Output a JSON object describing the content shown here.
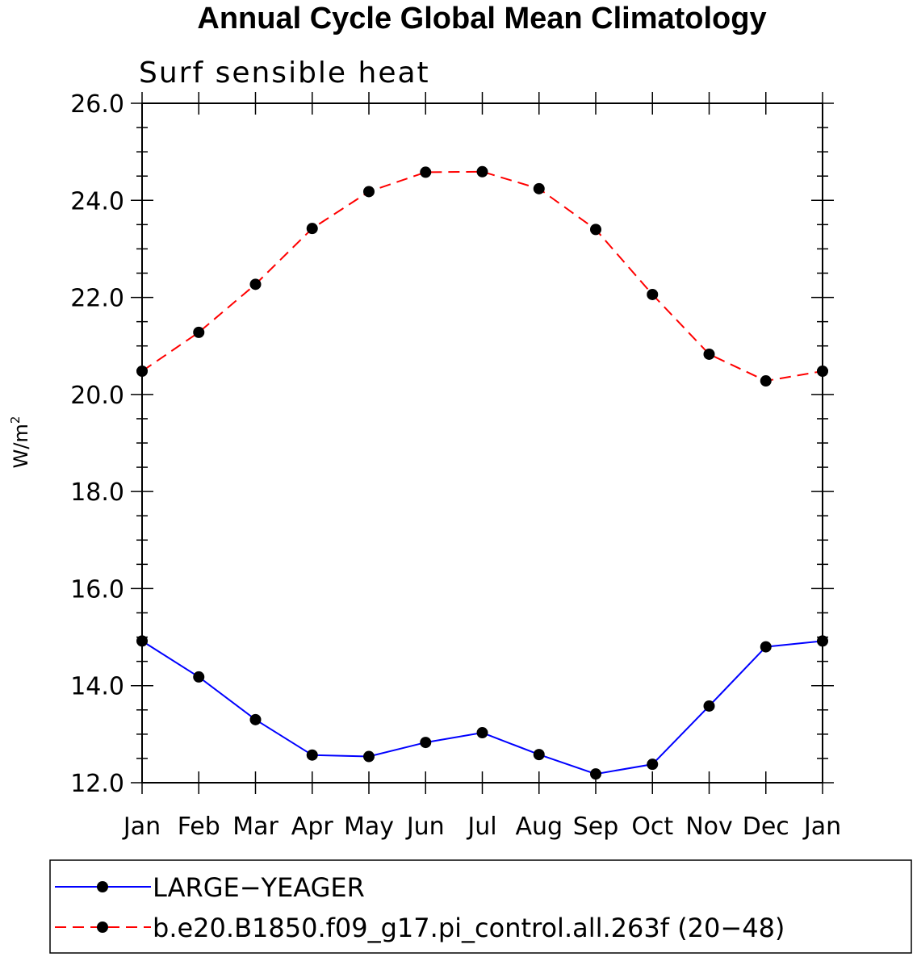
{
  "chart_data": {
    "type": "line",
    "title": "Annual Cycle Global Mean Climatology",
    "subtitle": "Surf sensible heat",
    "ylabel": "W/m",
    "ylabel_superscript": "2",
    "ylim": [
      12.0,
      26.0
    ],
    "yticks": [
      "12.0",
      "14.0",
      "16.0",
      "18.0",
      "20.0",
      "22.0",
      "24.0",
      "26.0"
    ],
    "categories": [
      "Jan",
      "Feb",
      "Mar",
      "Apr",
      "May",
      "Jun",
      "Jul",
      "Aug",
      "Sep",
      "Oct",
      "Nov",
      "Dec",
      "Jan"
    ],
    "series": [
      {
        "name": "LARGE−YEAGER",
        "color": "#0000ff",
        "line": "solid",
        "values": [
          14.92,
          14.18,
          13.3,
          12.57,
          12.54,
          12.83,
          13.03,
          12.58,
          12.18,
          12.38,
          13.58,
          14.8,
          14.92
        ]
      },
      {
        "name": "b.e20.B1850.f09_g17.pi_control.all.263f (20−48)",
        "color": "#ff0000",
        "line": "dashed",
        "values": [
          20.48,
          21.28,
          22.27,
          23.42,
          24.18,
          24.58,
          24.59,
          24.24,
          23.4,
          22.06,
          20.83,
          20.28,
          20.48
        ]
      }
    ],
    "grid": false,
    "legend_position": "bottom"
  }
}
